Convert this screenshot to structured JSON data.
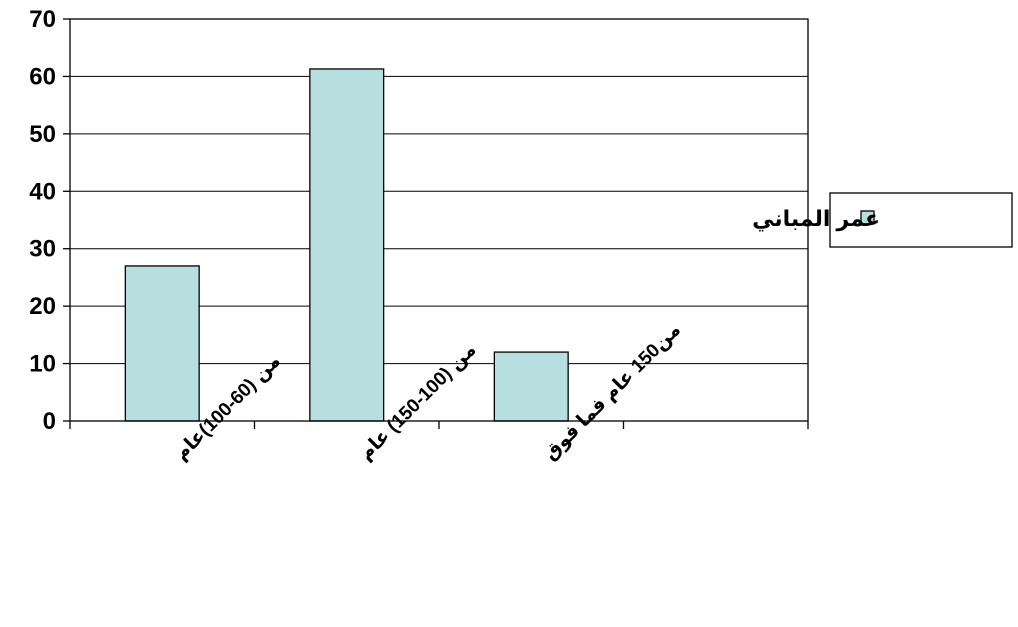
{
  "chart_data": {
    "type": "bar",
    "categories": [
      "من (60-100)عام",
      "من (100-150) عام",
      "من150 عام فما فوق",
      ""
    ],
    "series": [
      {
        "name": "عمر المباني",
        "values": [
          27,
          61.3,
          12,
          null
        ],
        "color": "#b7dfe0"
      }
    ],
    "ylim": [
      0,
      70
    ],
    "yticks": [
      0,
      10,
      20,
      30,
      40,
      50,
      60,
      70
    ],
    "grid": true,
    "legend": "right",
    "title": "",
    "xlabel": "",
    "ylabel": ""
  }
}
